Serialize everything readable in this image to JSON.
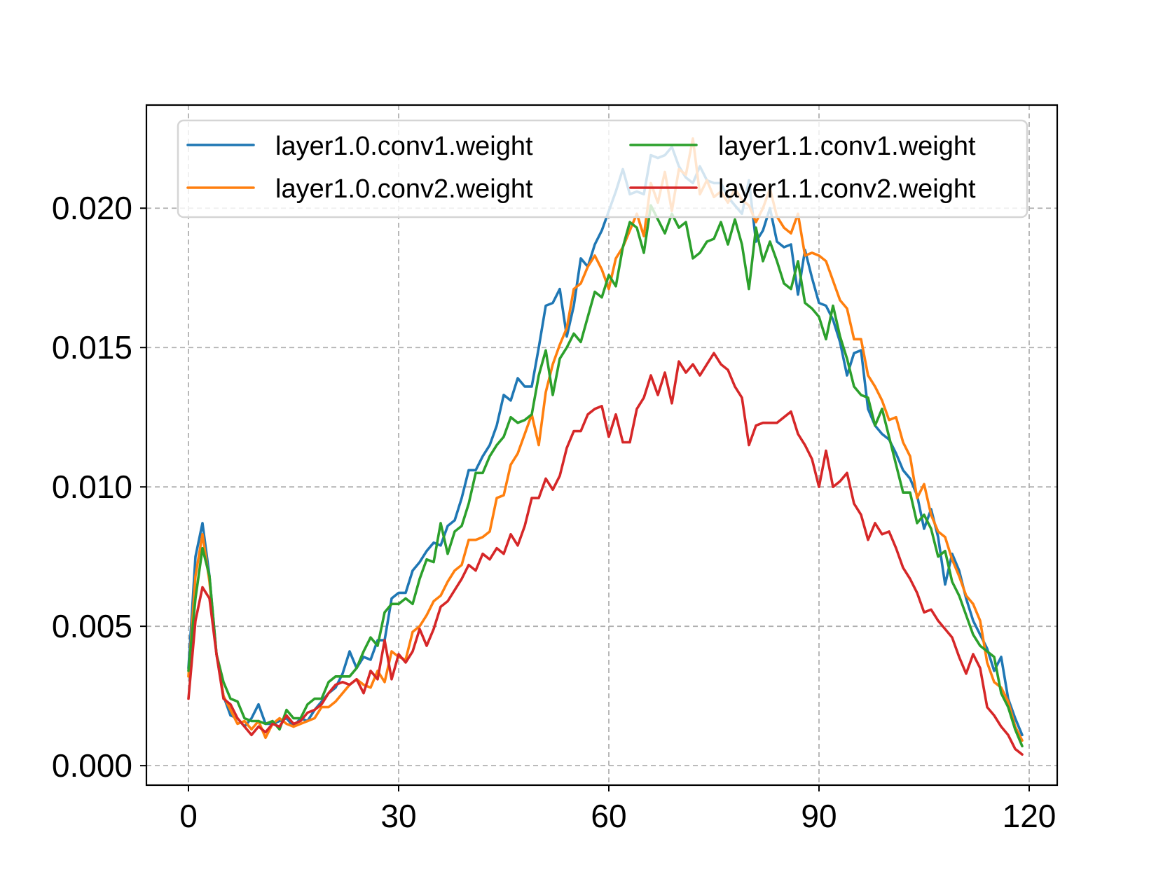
{
  "chart_data": {
    "type": "line",
    "title": "",
    "xlabel": "",
    "ylabel": "",
    "xlim": [
      -6,
      124
    ],
    "ylim": [
      -0.0007,
      0.0237
    ],
    "xticks": [
      0,
      30,
      60,
      90,
      120
    ],
    "xtick_labels": [
      "0",
      "30",
      "60",
      "90",
      "120"
    ],
    "yticks": [
      0.0,
      0.005,
      0.01,
      0.015,
      0.02
    ],
    "ytick_labels": [
      "0.000",
      "0.005",
      "0.010",
      "0.015",
      "0.020"
    ],
    "grid": true,
    "legend_position": "top",
    "legend_columns": 2,
    "series": [
      {
        "name": "layer1.0.conv1.weight",
        "color": "#1f77b4",
        "x_points": [
          0,
          1,
          2,
          3,
          4,
          5,
          6,
          7,
          8,
          9,
          10,
          11,
          12,
          13,
          14,
          15,
          16,
          17,
          18,
          19,
          20,
          21,
          22,
          23,
          24,
          25,
          26,
          27,
          28,
          29,
          30,
          31,
          32,
          33,
          34,
          35,
          36,
          37,
          38,
          39,
          40,
          41,
          42,
          43,
          44,
          45,
          46,
          47,
          48,
          49,
          50,
          51,
          52,
          53,
          54,
          55,
          56,
          57,
          58,
          59,
          60,
          61,
          62,
          63,
          64,
          65,
          66,
          67,
          68,
          69,
          70,
          71,
          72,
          73,
          74,
          75,
          76,
          77,
          78,
          79,
          80,
          81,
          82,
          83,
          84,
          85,
          86,
          87,
          88,
          89,
          90,
          91,
          92,
          93,
          94,
          95,
          96,
          97,
          98,
          99,
          100,
          101,
          102,
          103,
          104,
          105,
          106,
          107,
          108,
          109,
          110,
          111,
          112,
          113,
          114,
          115,
          116,
          117,
          118,
          119
        ],
        "values": [
          0.0035,
          0.0075,
          0.0087,
          0.0068,
          0.004,
          0.0025,
          0.0018,
          0.0017,
          0.0014,
          0.0017,
          0.0022,
          0.0015,
          0.0015,
          0.0016,
          0.0017,
          0.0014,
          0.0017,
          0.0016,
          0.002,
          0.0023,
          0.0026,
          0.0028,
          0.0033,
          0.0041,
          0.0035,
          0.0039,
          0.0038,
          0.0045,
          0.0045,
          0.006,
          0.0062,
          0.0062,
          0.007,
          0.0073,
          0.0077,
          0.008,
          0.0079,
          0.0086,
          0.0088,
          0.0096,
          0.0106,
          0.0106,
          0.0111,
          0.0115,
          0.0122,
          0.0133,
          0.0131,
          0.0139,
          0.0136,
          0.0136,
          0.015,
          0.0165,
          0.0166,
          0.0171,
          0.0154,
          0.0165,
          0.0182,
          0.0179,
          0.0187,
          0.0192,
          0.0199,
          0.0206,
          0.0214,
          0.0205,
          0.0206,
          0.0205,
          0.0219,
          0.0218,
          0.0219,
          0.0222,
          0.0215,
          0.0211,
          0.0209,
          0.0215,
          0.021,
          0.0209,
          0.0209,
          0.0204,
          0.0201,
          0.0198,
          0.021,
          0.0188,
          0.0192,
          0.02,
          0.0188,
          0.0186,
          0.0187,
          0.0169,
          0.0185,
          0.0175,
          0.0166,
          0.0165,
          0.016,
          0.0152,
          0.014,
          0.0148,
          0.0149,
          0.0128,
          0.0122,
          0.0119,
          0.0117,
          0.0112,
          0.0106,
          0.0103,
          0.0097,
          0.0085,
          0.0092,
          0.0082,
          0.0065,
          0.0076,
          0.007,
          0.006,
          0.0052,
          0.0047,
          0.0042,
          0.0034,
          0.0039,
          0.0024,
          0.0017,
          0.0011
        ]
      },
      {
        "name": "layer1.0.conv2.weight",
        "color": "#ff7f0e",
        "x_points": [
          0,
          1,
          2,
          3,
          4,
          5,
          6,
          7,
          8,
          9,
          10,
          11,
          12,
          13,
          14,
          15,
          16,
          17,
          18,
          19,
          20,
          21,
          22,
          23,
          24,
          25,
          26,
          27,
          28,
          29,
          30,
          31,
          32,
          33,
          34,
          35,
          36,
          37,
          38,
          39,
          40,
          41,
          42,
          43,
          44,
          45,
          46,
          47,
          48,
          49,
          50,
          51,
          52,
          53,
          54,
          55,
          56,
          57,
          58,
          59,
          60,
          61,
          62,
          63,
          64,
          65,
          66,
          67,
          68,
          69,
          70,
          71,
          72,
          73,
          74,
          75,
          76,
          77,
          78,
          79,
          80,
          81,
          82,
          83,
          84,
          85,
          86,
          87,
          88,
          89,
          90,
          91,
          92,
          93,
          94,
          95,
          96,
          97,
          98,
          99,
          100,
          101,
          102,
          103,
          104,
          105,
          106,
          107,
          108,
          109,
          110,
          111,
          112,
          113,
          114,
          115,
          116,
          117,
          118,
          119
        ],
        "values": [
          0.0032,
          0.0068,
          0.0083,
          0.0066,
          0.004,
          0.0025,
          0.002,
          0.0015,
          0.0016,
          0.0013,
          0.0016,
          0.001,
          0.0015,
          0.0017,
          0.0015,
          0.0014,
          0.0015,
          0.0016,
          0.0017,
          0.0021,
          0.0021,
          0.0023,
          0.0026,
          0.0029,
          0.0031,
          0.0029,
          0.0028,
          0.0034,
          0.003,
          0.0041,
          0.0039,
          0.0038,
          0.0048,
          0.005,
          0.0054,
          0.0059,
          0.0061,
          0.0066,
          0.007,
          0.0072,
          0.0081,
          0.0081,
          0.0082,
          0.0084,
          0.0096,
          0.0097,
          0.0108,
          0.0112,
          0.0119,
          0.0126,
          0.0115,
          0.0134,
          0.0144,
          0.0151,
          0.0157,
          0.0171,
          0.0173,
          0.0179,
          0.0183,
          0.0178,
          0.0171,
          0.0182,
          0.0186,
          0.0192,
          0.0198,
          0.019,
          0.0209,
          0.0202,
          0.0213,
          0.0199,
          0.0214,
          0.0212,
          0.0225,
          0.0205,
          0.021,
          0.0204,
          0.0206,
          0.0202,
          0.0207,
          0.0203,
          0.0201,
          0.0195,
          0.02,
          0.0207,
          0.0197,
          0.0193,
          0.0191,
          0.0198,
          0.0183,
          0.0184,
          0.0183,
          0.0181,
          0.0174,
          0.0167,
          0.0164,
          0.0153,
          0.0153,
          0.014,
          0.0136,
          0.0131,
          0.0124,
          0.0125,
          0.0116,
          0.0111,
          0.0096,
          0.0101,
          0.009,
          0.0084,
          0.0082,
          0.0074,
          0.0068,
          0.0061,
          0.0058,
          0.0052,
          0.0037,
          0.003,
          0.0028,
          0.0023,
          0.0014,
          0.0009
        ]
      },
      {
        "name": "layer1.1.conv1.weight",
        "color": "#2ca02c",
        "x_points": [
          0,
          1,
          2,
          3,
          4,
          5,
          6,
          7,
          8,
          9,
          10,
          11,
          12,
          13,
          14,
          15,
          16,
          17,
          18,
          19,
          20,
          21,
          22,
          23,
          24,
          25,
          26,
          27,
          28,
          29,
          30,
          31,
          32,
          33,
          34,
          35,
          36,
          37,
          38,
          39,
          40,
          41,
          42,
          43,
          44,
          45,
          46,
          47,
          48,
          49,
          50,
          51,
          52,
          53,
          54,
          55,
          56,
          57,
          58,
          59,
          60,
          61,
          62,
          63,
          64,
          65,
          66,
          67,
          68,
          69,
          70,
          71,
          72,
          73,
          74,
          75,
          76,
          77,
          78,
          79,
          80,
          81,
          82,
          83,
          84,
          85,
          86,
          87,
          88,
          89,
          90,
          91,
          92,
          93,
          94,
          95,
          96,
          97,
          98,
          99,
          100,
          101,
          102,
          103,
          104,
          105,
          106,
          107,
          108,
          109,
          110,
          111,
          112,
          113,
          114,
          115,
          116,
          117,
          118,
          119
        ],
        "values": [
          0.0034,
          0.006,
          0.0078,
          0.0068,
          0.004,
          0.003,
          0.0024,
          0.0023,
          0.0017,
          0.0016,
          0.0016,
          0.0015,
          0.0016,
          0.0013,
          0.002,
          0.0017,
          0.0017,
          0.0022,
          0.0024,
          0.0024,
          0.003,
          0.0032,
          0.0032,
          0.0032,
          0.0035,
          0.0041,
          0.0046,
          0.0043,
          0.0055,
          0.0058,
          0.0058,
          0.006,
          0.0058,
          0.0067,
          0.0074,
          0.0073,
          0.0087,
          0.0076,
          0.0084,
          0.0086,
          0.0094,
          0.0105,
          0.0105,
          0.0111,
          0.0115,
          0.0118,
          0.0125,
          0.0123,
          0.0124,
          0.0126,
          0.014,
          0.0149,
          0.0133,
          0.0146,
          0.015,
          0.0155,
          0.0152,
          0.0161,
          0.017,
          0.0168,
          0.0176,
          0.0172,
          0.0186,
          0.0195,
          0.0193,
          0.0184,
          0.0201,
          0.0196,
          0.0191,
          0.0198,
          0.0193,
          0.0195,
          0.0182,
          0.0184,
          0.0188,
          0.0189,
          0.0195,
          0.0187,
          0.0196,
          0.0187,
          0.0171,
          0.0193,
          0.0181,
          0.0188,
          0.0181,
          0.0173,
          0.0171,
          0.0181,
          0.0166,
          0.0164,
          0.0161,
          0.0153,
          0.0165,
          0.0154,
          0.0146,
          0.0136,
          0.0133,
          0.0132,
          0.0122,
          0.0128,
          0.0118,
          0.0108,
          0.0098,
          0.0098,
          0.0087,
          0.009,
          0.0085,
          0.0075,
          0.0077,
          0.0066,
          0.0061,
          0.0054,
          0.0047,
          0.0043,
          0.0041,
          0.0039,
          0.0026,
          0.0021,
          0.0013,
          0.0007
        ]
      },
      {
        "name": "layer1.1.conv2.weight",
        "color": "#d62728",
        "x_points": [
          0,
          1,
          2,
          3,
          4,
          5,
          6,
          7,
          8,
          9,
          10,
          11,
          12,
          13,
          14,
          15,
          16,
          17,
          18,
          19,
          20,
          21,
          22,
          23,
          24,
          25,
          26,
          27,
          28,
          29,
          30,
          31,
          32,
          33,
          34,
          35,
          36,
          37,
          38,
          39,
          40,
          41,
          42,
          43,
          44,
          45,
          46,
          47,
          48,
          49,
          50,
          51,
          52,
          53,
          54,
          55,
          56,
          57,
          58,
          59,
          60,
          61,
          62,
          63,
          64,
          65,
          66,
          67,
          68,
          69,
          70,
          71,
          72,
          73,
          74,
          75,
          76,
          77,
          78,
          79,
          80,
          81,
          82,
          83,
          84,
          85,
          86,
          87,
          88,
          89,
          90,
          91,
          92,
          93,
          94,
          95,
          96,
          97,
          98,
          99,
          100,
          101,
          102,
          103,
          104,
          105,
          106,
          107,
          108,
          109,
          110,
          111,
          112,
          113,
          114,
          115,
          116,
          117,
          118,
          119
        ],
        "values": [
          0.0024,
          0.0052,
          0.0064,
          0.006,
          0.004,
          0.0024,
          0.0022,
          0.0017,
          0.0014,
          0.0011,
          0.0014,
          0.0012,
          0.0015,
          0.0014,
          0.0018,
          0.0015,
          0.0016,
          0.0019,
          0.002,
          0.0022,
          0.0026,
          0.0029,
          0.003,
          0.0029,
          0.0031,
          0.0026,
          0.0034,
          0.0031,
          0.0045,
          0.0031,
          0.004,
          0.0037,
          0.0041,
          0.0049,
          0.0043,
          0.0049,
          0.0057,
          0.0059,
          0.0063,
          0.0067,
          0.0072,
          0.007,
          0.0076,
          0.0074,
          0.0078,
          0.0076,
          0.0083,
          0.0079,
          0.0086,
          0.0096,
          0.0096,
          0.0103,
          0.0099,
          0.0104,
          0.0114,
          0.012,
          0.012,
          0.0126,
          0.0128,
          0.0129,
          0.0118,
          0.0126,
          0.0116,
          0.0116,
          0.0128,
          0.0132,
          0.014,
          0.0133,
          0.0141,
          0.013,
          0.0145,
          0.0141,
          0.0144,
          0.014,
          0.0144,
          0.0148,
          0.0144,
          0.0142,
          0.0136,
          0.0132,
          0.0115,
          0.0122,
          0.0123,
          0.0123,
          0.0123,
          0.0125,
          0.0127,
          0.0119,
          0.0115,
          0.011,
          0.01,
          0.0113,
          0.01,
          0.0102,
          0.0105,
          0.0094,
          0.009,
          0.0081,
          0.0087,
          0.0083,
          0.0084,
          0.0078,
          0.0071,
          0.0067,
          0.0062,
          0.0055,
          0.0056,
          0.0052,
          0.0049,
          0.0046,
          0.0039,
          0.0033,
          0.004,
          0.0035,
          0.0021,
          0.0018,
          0.0014,
          0.0011,
          0.0006,
          0.0004
        ]
      }
    ]
  }
}
